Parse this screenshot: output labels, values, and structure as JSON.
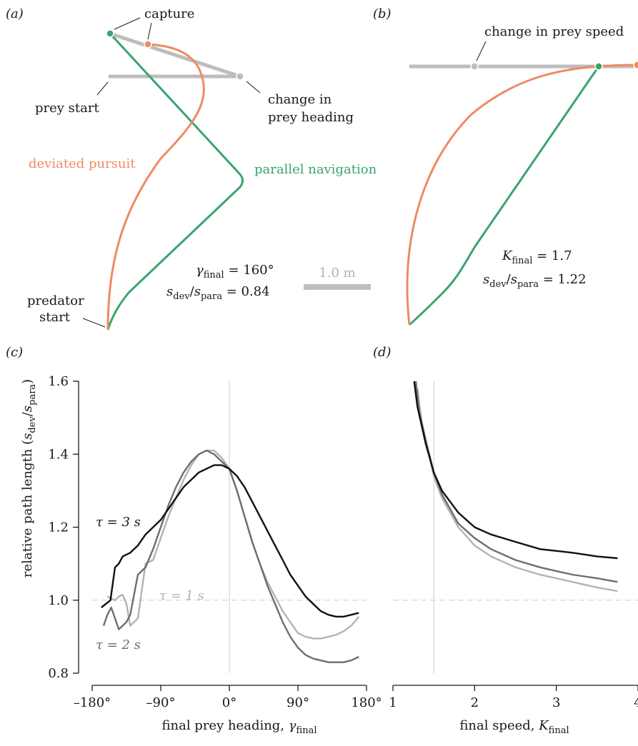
{
  "colors": {
    "deviated": "#ef8a62",
    "parallel": "#3aa46c",
    "prey": "#bdbdbd",
    "tau1": "#b3b3b3",
    "tau2": "#6e6e6e",
    "tau3": "#111111",
    "guide": "#cccccc",
    "dash": "#d6d6d6"
  },
  "panel_a": {
    "label": "(a)",
    "capture": "capture",
    "prey_start": "prey start",
    "change_heading_1": "change in",
    "change_heading_2": "prey heading",
    "deviated": "deviated pursuit",
    "parallel": "parallel navigation",
    "predator_1": "predator",
    "predator_2": "start",
    "gamma_sym": "γ",
    "gamma_sub": "final",
    "gamma_val": " = 160°",
    "s_sym1": "s",
    "s_sub1": "dev",
    "s_slash": "/",
    "s_sym2": "s",
    "s_sub2": "para",
    "s_val": " = 0.84",
    "scale": "1.0 m"
  },
  "panel_b": {
    "label": "(b)",
    "change_speed": "change in prey speed",
    "k_sym": "K",
    "k_sub": "final",
    "k_val": " = 1.7",
    "s_sym1": "s",
    "s_sub1": "dev",
    "s_slash": "/",
    "s_sym2": "s",
    "s_sub2": "para",
    "s_val": " = 1.22"
  },
  "panel_c": {
    "label": "(c)",
    "ylabel_pre": "relative path length (",
    "ylabel_s1": "s",
    "ylabel_sub1": "dev",
    "ylabel_slash": "/",
    "ylabel_s2": "s",
    "ylabel_sub2": "para",
    "ylabel_post": ")",
    "xlabel_pre": "final prey heading, ",
    "xlabel_sym": "γ",
    "xlabel_sub": "final",
    "tau3": "τ = 3 s",
    "tau1": "τ = 1 s",
    "tau2": "τ = 2 s"
  },
  "panel_d": {
    "label": "(d)",
    "xlabel_pre": "final speed, ",
    "xlabel_sym": "K",
    "xlabel_sub": "final"
  },
  "chart_data": [
    {
      "type": "line",
      "panel": "c",
      "xlim": [
        -180,
        180
      ],
      "ylim": [
        0.8,
        1.6
      ],
      "x_ticks": [
        -180,
        -90,
        0,
        90,
        180
      ],
      "x_tick_labels": [
        "–180°",
        "–90°",
        "0°",
        "90°",
        "180°"
      ],
      "y_ticks": [
        0.8,
        1.0,
        1.2,
        1.4,
        1.6
      ],
      "y_tick_labels": [
        "0.8",
        "1.0",
        "1.2",
        "1.4",
        "1.6"
      ],
      "reference_lines": {
        "y": 1.0,
        "x": 0
      },
      "series": [
        {
          "name": "τ = 1 s",
          "x": [
            -160,
            -155,
            -150,
            -145,
            -140,
            -135,
            -130,
            -120,
            -110,
            -100,
            -90,
            -80,
            -70,
            -60,
            -50,
            -40,
            -30,
            -20,
            -10,
            0,
            10,
            20,
            30,
            40,
            50,
            60,
            70,
            80,
            90,
            100,
            110,
            120,
            130,
            140,
            150,
            160,
            170
          ],
          "y": [
            1.01,
            1.005,
            1.0,
            1.01,
            1.015,
            0.99,
            0.93,
            0.95,
            1.1,
            1.11,
            1.17,
            1.23,
            1.28,
            1.33,
            1.37,
            1.4,
            1.41,
            1.41,
            1.39,
            1.36,
            1.3,
            1.23,
            1.16,
            1.1,
            1.05,
            1.01,
            0.97,
            0.94,
            0.91,
            0.9,
            0.895,
            0.895,
            0.9,
            0.905,
            0.915,
            0.93,
            0.955
          ]
        },
        {
          "name": "τ = 2 s",
          "x": [
            -165,
            -160,
            -155,
            -150,
            -145,
            -140,
            -135,
            -130,
            -120,
            -110,
            -100,
            -90,
            -80,
            -70,
            -60,
            -50,
            -40,
            -30,
            -20,
            -10,
            0,
            10,
            20,
            30,
            40,
            50,
            60,
            70,
            80,
            90,
            100,
            110,
            120,
            130,
            140,
            150,
            160,
            170
          ],
          "y": [
            0.93,
            0.96,
            0.98,
            0.95,
            0.92,
            0.93,
            0.94,
            0.96,
            1.07,
            1.09,
            1.14,
            1.2,
            1.26,
            1.31,
            1.35,
            1.38,
            1.4,
            1.41,
            1.4,
            1.38,
            1.36,
            1.3,
            1.23,
            1.16,
            1.1,
            1.04,
            0.99,
            0.94,
            0.9,
            0.87,
            0.85,
            0.84,
            0.835,
            0.83,
            0.83,
            0.83,
            0.835,
            0.845
          ]
        },
        {
          "name": "τ = 3 s",
          "x": [
            -168,
            -162,
            -156,
            -150,
            -145,
            -140,
            -130,
            -120,
            -110,
            -100,
            -90,
            -80,
            -70,
            -60,
            -50,
            -40,
            -30,
            -20,
            -10,
            0,
            10,
            20,
            30,
            40,
            50,
            60,
            70,
            80,
            90,
            100,
            110,
            120,
            130,
            140,
            150,
            160,
            170
          ],
          "y": [
            0.98,
            0.99,
            1.0,
            1.09,
            1.1,
            1.12,
            1.13,
            1.15,
            1.18,
            1.2,
            1.22,
            1.25,
            1.28,
            1.31,
            1.33,
            1.35,
            1.36,
            1.37,
            1.37,
            1.36,
            1.34,
            1.31,
            1.27,
            1.23,
            1.19,
            1.15,
            1.11,
            1.07,
            1.04,
            1.01,
            0.99,
            0.97,
            0.96,
            0.955,
            0.955,
            0.96,
            0.965
          ]
        }
      ]
    },
    {
      "type": "line",
      "panel": "d",
      "xlim": [
        1,
        4
      ],
      "ylim": [
        0.8,
        1.6
      ],
      "x_ticks": [
        1,
        2,
        3,
        4
      ],
      "x_tick_labels": [
        "1",
        "2",
        "3",
        "4"
      ],
      "reference_lines": {
        "y": 1.0,
        "x": 1.5
      },
      "series": [
        {
          "name": "τ = 1 s",
          "x": [
            1.3,
            1.35,
            1.4,
            1.5,
            1.6,
            1.8,
            2.0,
            2.2,
            2.5,
            2.8,
            3.0,
            3.2,
            3.5,
            3.75
          ],
          "y": [
            1.58,
            1.49,
            1.44,
            1.34,
            1.28,
            1.2,
            1.15,
            1.12,
            1.09,
            1.07,
            1.06,
            1.05,
            1.035,
            1.025
          ]
        },
        {
          "name": "τ = 2 s",
          "x": [
            1.28,
            1.32,
            1.4,
            1.5,
            1.6,
            1.8,
            2.0,
            2.2,
            2.5,
            2.8,
            3.0,
            3.2,
            3.5,
            3.75
          ],
          "y": [
            1.6,
            1.52,
            1.44,
            1.35,
            1.29,
            1.21,
            1.17,
            1.14,
            1.11,
            1.09,
            1.08,
            1.07,
            1.06,
            1.05
          ]
        },
        {
          "name": "τ = 3 s",
          "x": [
            1.26,
            1.3,
            1.4,
            1.5,
            1.6,
            1.8,
            2.0,
            2.2,
            2.5,
            2.8,
            3.0,
            3.2,
            3.5,
            3.75
          ],
          "y": [
            1.6,
            1.53,
            1.43,
            1.35,
            1.3,
            1.24,
            1.2,
            1.18,
            1.16,
            1.14,
            1.135,
            1.13,
            1.12,
            1.115
          ]
        }
      ]
    }
  ]
}
